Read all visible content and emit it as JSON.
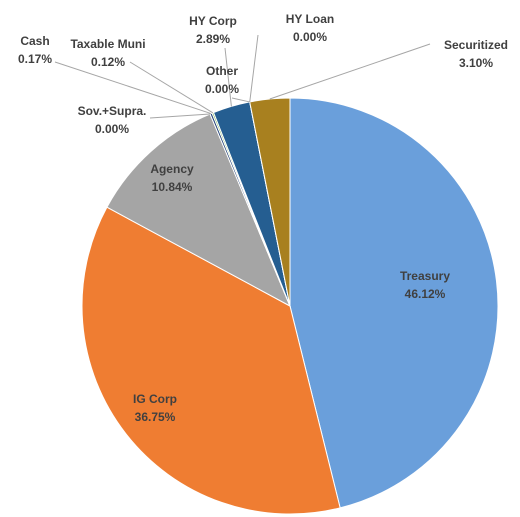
{
  "chart_data": {
    "type": "pie",
    "categories": [
      "Treasury",
      "IG Corp",
      "Agency",
      "Sov.+Supra.",
      "Cash",
      "Taxable Muni",
      "HY Corp",
      "Other",
      "HY Loan",
      "Securitized"
    ],
    "values": [
      46.12,
      36.75,
      10.84,
      0.0,
      0.17,
      0.12,
      2.89,
      0.0,
      0.0,
      3.1
    ],
    "value_labels": [
      "46.12%",
      "36.75%",
      "10.84%",
      "0.00%",
      "0.17%",
      "0.12%",
      "2.89%",
      "0.00%",
      "0.00%",
      "3.10%"
    ],
    "colors": [
      "#6a9fdb",
      "#ef7d32",
      "#a5a5a5",
      "#ffc000",
      "#264478",
      "#70ad47",
      "#255e91",
      "#636363",
      "#997300",
      "#a8801f"
    ]
  }
}
